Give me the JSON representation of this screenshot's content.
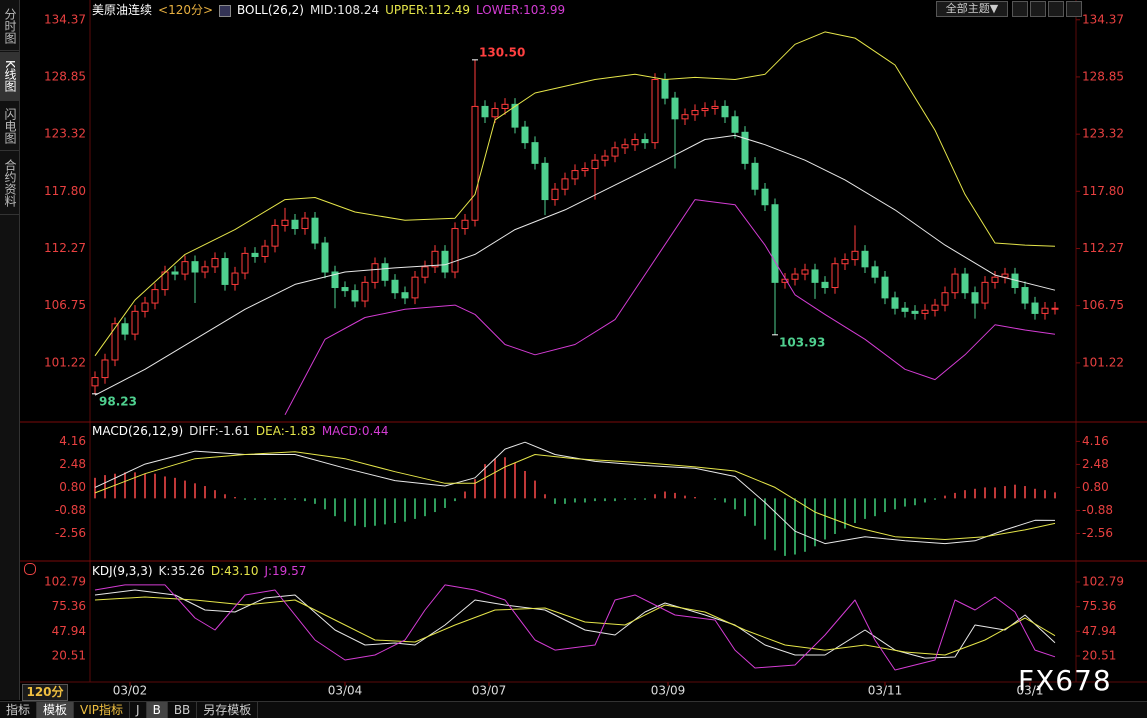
{
  "ui": {
    "sidebar_tabs": [
      "分时图",
      "K线图",
      "闪电图",
      "合约资料"
    ],
    "instrument": "美原油连续",
    "period": "<120分>",
    "period_badge": "120分",
    "theme_button": "全部主题▼",
    "bottom_tabs": [
      "指标",
      "模板",
      "VIP指标",
      "J",
      "B",
      "BB",
      "另存模板"
    ],
    "watermark": "FX678"
  },
  "chart_data": [
    {
      "type": "candlestick",
      "indicator": "BOLL(26,2)",
      "ylim": [
        95.7,
        135.8
      ],
      "xlim": [
        -0.5,
        96.5
      ],
      "grid": false,
      "yticks": [
        134.37,
        128.85,
        123.32,
        {
          "value": 117.8,
          "label": "117.80"
        },
        112.27,
        106.75,
        101.22
      ],
      "up_color": "#ff3b3b",
      "down_color": "#4fd08f",
      "candles": {
        "open": [
          99.0,
          99.8,
          101.5,
          105.0,
          104.0,
          106.2,
          107.0,
          108.3,
          110.0,
          109.8,
          111.0,
          110.0,
          110.5,
          111.3,
          108.8,
          109.9,
          111.8,
          111.5,
          112.5,
          114.5,
          115.0,
          114.2,
          115.2,
          112.8,
          110.0,
          108.5,
          108.2,
          107.2,
          109.0,
          110.8,
          109.2,
          108.0,
          107.5,
          109.5,
          110.5,
          112.0,
          110.0,
          114.2,
          115.0,
          126.0,
          125.0,
          125.8,
          126.2,
          124.0,
          122.5,
          120.5,
          117.0,
          118.0,
          119.0,
          119.8,
          120.0,
          120.8,
          121.2,
          122.0,
          122.3,
          122.8,
          122.5,
          128.6,
          126.8,
          124.8,
          125.2,
          125.6,
          125.8,
          126.0,
          125.0,
          123.5,
          120.5,
          118.0,
          116.5,
          109.0,
          109.3,
          109.8,
          110.2,
          109.0,
          108.5,
          110.8,
          111.2,
          112.0,
          110.5,
          109.5,
          107.5,
          106.5,
          106.2,
          106.0,
          106.3,
          106.8,
          108.0,
          109.8,
          108.0,
          107.0,
          109.0,
          109.5,
          109.8,
          108.5,
          107.0,
          106.0,
          106.5
        ],
        "high": [
          100.4,
          102.1,
          105.6,
          105.6,
          106.8,
          107.6,
          108.9,
          110.6,
          110.6,
          111.6,
          111.6,
          111.1,
          111.9,
          111.9,
          110.5,
          112.4,
          112.4,
          113.1,
          115.1,
          116.2,
          115.6,
          115.8,
          115.8,
          113.4,
          110.6,
          109.1,
          108.8,
          109.6,
          111.4,
          111.4,
          109.8,
          108.6,
          110.1,
          111.1,
          112.6,
          112.6,
          114.8,
          115.6,
          130.5,
          126.6,
          126.4,
          126.8,
          126.8,
          124.6,
          123.1,
          121.1,
          118.6,
          119.6,
          120.4,
          120.6,
          121.4,
          121.8,
          122.6,
          122.9,
          123.4,
          123.4,
          129.2,
          129.2,
          127.4,
          125.8,
          126.2,
          126.4,
          126.6,
          126.6,
          125.6,
          124.1,
          121.1,
          118.6,
          117.1,
          109.9,
          110.4,
          110.8,
          110.8,
          109.6,
          111.4,
          111.8,
          114.5,
          112.6,
          111.1,
          110.1,
          108.1,
          107.1,
          106.8,
          106.9,
          107.4,
          108.6,
          110.4,
          110.4,
          108.6,
          109.6,
          110.1,
          110.4,
          110.4,
          109.1,
          107.6,
          107.1,
          107.1
        ],
        "low": [
          98.23,
          99.2,
          100.9,
          103.4,
          103.4,
          105.6,
          106.4,
          107.7,
          109.2,
          109.2,
          107.0,
          109.4,
          109.9,
          108.2,
          108.2,
          109.3,
          110.9,
          110.9,
          111.9,
          113.9,
          113.6,
          113.6,
          112.2,
          109.4,
          106.5,
          107.6,
          106.6,
          106.6,
          108.4,
          108.6,
          107.4,
          106.9,
          106.9,
          108.9,
          109.9,
          109.4,
          109.4,
          113.6,
          114.4,
          124.4,
          124.4,
          125.2,
          123.4,
          121.9,
          119.9,
          115.5,
          116.4,
          117.4,
          118.4,
          119.2,
          117.0,
          120.2,
          120.6,
          121.4,
          121.7,
          121.9,
          121.9,
          126.2,
          120.0,
          124.2,
          124.6,
          125.0,
          125.2,
          124.4,
          122.9,
          119.9,
          117.4,
          115.9,
          103.93,
          108.4,
          108.7,
          109.2,
          107.4,
          107.9,
          107.9,
          110.2,
          110.6,
          109.9,
          108.9,
          106.9,
          105.9,
          105.6,
          105.4,
          105.4,
          105.7,
          106.2,
          107.4,
          107.4,
          105.5,
          106.4,
          108.4,
          108.9,
          107.9,
          106.4,
          105.4,
          105.4,
          105.9
        ],
        "close": [
          99.8,
          101.5,
          105.0,
          104.0,
          106.2,
          107.0,
          108.3,
          110.0,
          109.8,
          111.0,
          110.0,
          110.5,
          111.3,
          108.8,
          109.9,
          111.8,
          111.5,
          112.5,
          114.5,
          115.0,
          114.2,
          115.2,
          112.8,
          110.0,
          108.5,
          108.2,
          107.2,
          109.0,
          110.8,
          109.2,
          108.0,
          107.5,
          109.5,
          110.5,
          112.0,
          110.0,
          114.2,
          115.0,
          126.0,
          125.0,
          125.8,
          126.2,
          124.0,
          122.5,
          120.5,
          117.0,
          118.0,
          119.0,
          119.8,
          120.0,
          120.8,
          121.2,
          122.0,
          122.3,
          122.8,
          122.5,
          128.6,
          126.8,
          124.8,
          125.2,
          125.6,
          125.8,
          126.0,
          125.0,
          123.5,
          120.5,
          118.0,
          116.5,
          109.0,
          109.3,
          109.8,
          110.2,
          109.0,
          108.5,
          110.8,
          111.2,
          112.0,
          110.5,
          109.5,
          107.5,
          106.5,
          106.2,
          106.0,
          106.3,
          106.8,
          108.0,
          109.8,
          108.0,
          107.0,
          109.0,
          109.5,
          109.8,
          108.5,
          107.0,
          106.0,
          106.5,
          106.5
        ]
      },
      "lines": [
        {
          "label": "MID:108.24",
          "color": "#e8e8e8",
          "x": [
            0,
            5,
            10,
            15,
            20,
            25,
            30,
            35,
            38,
            42,
            47,
            52,
            57,
            61,
            64,
            67,
            71,
            75,
            80,
            85,
            90,
            96
          ],
          "values": [
            98.1,
            100.6,
            103.5,
            106.4,
            108.8,
            110.0,
            110.4,
            110.7,
            111.7,
            114.1,
            116.0,
            118.4,
            120.8,
            122.8,
            123.2,
            122.3,
            120.8,
            118.9,
            116.0,
            112.6,
            109.7,
            108.24
          ]
        },
        {
          "label": "UPPER:112.49",
          "color": "#e6e64a",
          "x": [
            0,
            4,
            9,
            14,
            19,
            22,
            26,
            31,
            36,
            38,
            40,
            44,
            50,
            54,
            57,
            60,
            64,
            67,
            70,
            73,
            76,
            80,
            84,
            87,
            90,
            93,
            96
          ],
          "values": [
            101.9,
            107.3,
            111.7,
            114.1,
            117.0,
            117.2,
            115.8,
            115.0,
            115.2,
            117.5,
            124.7,
            127.3,
            128.6,
            129.1,
            128.6,
            128.8,
            128.6,
            129.1,
            132.0,
            133.2,
            132.6,
            130.0,
            123.7,
            117.5,
            112.8,
            112.6,
            112.49
          ]
        },
        {
          "label": "LOWER:103.99",
          "color": "#d43cd4",
          "x": [
            19,
            23,
            27,
            31,
            36,
            38,
            41,
            44,
            48,
            52,
            56,
            60,
            64,
            67,
            70,
            73,
            77,
            81,
            84,
            87,
            90,
            93,
            96
          ],
          "values": [
            96.2,
            103.5,
            105.6,
            106.4,
            106.8,
            105.9,
            103.0,
            102.0,
            103.0,
            105.4,
            111.2,
            117.0,
            116.5,
            112.6,
            107.8,
            105.9,
            103.5,
            100.6,
            99.6,
            102.0,
            104.9,
            104.4,
            103.99
          ]
        }
      ],
      "annotations": [
        {
          "text": "130.50",
          "x": 38,
          "y": 130.5,
          "color": "#ff4040"
        },
        {
          "text": "98.23",
          "x": 0,
          "y": 98.23,
          "color": "#4fd08f"
        },
        {
          "text": "103.93",
          "x": 68,
          "y": 103.93,
          "color": "#4fd08f"
        }
      ]
    },
    {
      "type": "bar",
      "indicator": "MACD(26,12,9)",
      "ylim": [
        -4.5,
        5.43
      ],
      "xlim": [
        -0.5,
        96.5
      ],
      "grid": false,
      "yticks": [
        4.16,
        2.48,
        {
          "value": 0.8,
          "label": "0.80"
        },
        -0.88,
        -2.56
      ],
      "up_color": "#ff4a4a",
      "down_color": "#3fd07a",
      "bar_label": "MACD:0.44",
      "bar_label_color": "#d43cd4",
      "values": [
        1.5,
        1.7,
        1.8,
        1.9,
        1.9,
        1.8,
        1.8,
        1.6,
        1.5,
        1.3,
        1.1,
        0.9,
        0.6,
        0.3,
        0.1,
        -0.1,
        -0.1,
        -0.1,
        -0.1,
        -0.1,
        -0.1,
        -0.2,
        -0.4,
        -0.8,
        -1.3,
        -1.7,
        -2.0,
        -2.1,
        -2.0,
        -1.9,
        -1.8,
        -1.7,
        -1.5,
        -1.3,
        -1.0,
        -0.7,
        -0.2,
        0.5,
        1.4,
        2.5,
        2.9,
        3.0,
        2.6,
        2.0,
        1.3,
        0.3,
        -0.4,
        -0.4,
        -0.3,
        -0.3,
        -0.2,
        -0.2,
        -0.2,
        -0.1,
        -0.1,
        -0.1,
        0.3,
        0.5,
        0.4,
        0.2,
        0.1,
        0.0,
        -0.1,
        -0.3,
        -0.8,
        -1.3,
        -2.0,
        -3.0,
        -3.8,
        -4.2,
        -4.1,
        -3.9,
        -3.5,
        -3.0,
        -2.6,
        -2.2,
        -1.8,
        -1.5,
        -1.3,
        -1.0,
        -0.8,
        -0.6,
        -0.5,
        -0.3,
        -0.1,
        0.2,
        0.4,
        0.6,
        0.7,
        0.8,
        0.8,
        0.9,
        1.0,
        0.9,
        0.7,
        0.6,
        0.44
      ],
      "lines": [
        {
          "label": "DIFF:-1.61",
          "color": "#e8e8e8",
          "x": [
            0,
            5,
            10,
            15,
            20,
            25,
            30,
            35,
            38,
            41,
            43,
            46,
            50,
            55,
            60,
            64,
            67,
            70,
            73,
            77,
            81,
            85,
            88,
            91,
            94,
            96
          ],
          "values": [
            0.8,
            2.5,
            3.45,
            3.2,
            3.2,
            2.2,
            1.3,
            0.9,
            1.5,
            3.6,
            4.1,
            3.2,
            2.7,
            2.4,
            2.2,
            1.6,
            -0.3,
            -2.4,
            -3.3,
            -2.8,
            -3.1,
            -3.3,
            -3.1,
            -2.3,
            -1.6,
            -1.61
          ]
        },
        {
          "label": "DEA:-1.83",
          "color": "#e6e64a",
          "x": [
            0,
            5,
            10,
            15,
            20,
            25,
            30,
            35,
            38,
            41,
            44,
            48,
            55,
            60,
            64,
            68,
            72,
            76,
            80,
            85,
            89,
            93,
            96
          ],
          "values": [
            0.4,
            1.8,
            2.9,
            3.2,
            3.4,
            2.9,
            1.95,
            1.1,
            1.1,
            2.3,
            3.2,
            2.9,
            2.6,
            2.3,
            2.0,
            0.8,
            -1.0,
            -2.1,
            -2.8,
            -3.0,
            -2.8,
            -2.3,
            -1.83
          ]
        }
      ]
    },
    {
      "type": "line",
      "indicator": "KDJ(9,3,3)",
      "ylim": [
        -6.2,
        123.9
      ],
      "xlim": [
        -0.5,
        96.5
      ],
      "grid": false,
      "yticks": [
        102.79,
        75.36,
        47.94,
        20.51
      ],
      "xticks": [
        {
          "value": 3.5,
          "label": "03/02"
        },
        {
          "value": 25,
          "label": "03/04"
        },
        {
          "value": 39.4,
          "label": "03/07"
        },
        {
          "value": 57.3,
          "label": "03/09"
        },
        {
          "value": 79,
          "label": "03/11"
        },
        {
          "value": 93.5,
          "label": "03/1"
        }
      ],
      "lines": [
        {
          "label": "K:35.26",
          "color": "#e8e8e8",
          "x": [
            0,
            4,
            8,
            11,
            14,
            17,
            20,
            24,
            27,
            30,
            32,
            35,
            38,
            41,
            45,
            49,
            52,
            55,
            57,
            61,
            64,
            67,
            70,
            73,
            77,
            80,
            83,
            86,
            88,
            91,
            93,
            96
          ],
          "values": [
            88.3,
            93.9,
            88.3,
            71.6,
            69.4,
            85.0,
            88.3,
            49.4,
            32.7,
            34.9,
            32.7,
            55.0,
            82.8,
            77.2,
            71.6,
            49.4,
            43.8,
            69.4,
            79.4,
            66.1,
            55.0,
            32.7,
            21.6,
            21.6,
            49.4,
            27.1,
            18.2,
            19.4,
            55.0,
            49.4,
            66.1,
            35.26
          ]
        },
        {
          "label": "D:43.10",
          "color": "#e6e64a",
          "x": [
            0,
            5,
            10,
            15,
            20,
            24,
            28,
            32,
            36,
            40,
            45,
            49,
            53,
            57,
            61,
            65,
            69,
            73,
            77,
            81,
            85,
            89,
            93,
            96
          ],
          "values": [
            82.8,
            86.1,
            82.8,
            77.2,
            82.8,
            60.5,
            38.3,
            36.0,
            55.0,
            71.6,
            73.9,
            58.3,
            55.0,
            77.2,
            69.4,
            49.4,
            32.7,
            27.1,
            32.7,
            24.9,
            21.6,
            38.3,
            62.7,
            43.1
          ]
        },
        {
          "label": "J:19.57",
          "color": "#d43cd4",
          "x": [
            0,
            3,
            7,
            10,
            12,
            15,
            18,
            22,
            25,
            28,
            31,
            33,
            35,
            38,
            41,
            44,
            46,
            50,
            52,
            54,
            58,
            62,
            64,
            66,
            70,
            73,
            76,
            78,
            80,
            84,
            86,
            88,
            90,
            92,
            94,
            96
          ],
          "values": [
            93.9,
            99.5,
            99.5,
            62.7,
            49.4,
            88.3,
            93.9,
            38.3,
            16.0,
            21.6,
            38.3,
            71.6,
            99.5,
            93.9,
            82.8,
            38.3,
            27.1,
            32.7,
            82.8,
            88.3,
            66.1,
            60.5,
            27.1,
            7.1,
            10.5,
            43.8,
            82.8,
            38.3,
            4.9,
            16.0,
            82.8,
            71.6,
            86.1,
            69.4,
            27.1,
            19.57
          ]
        }
      ]
    }
  ]
}
